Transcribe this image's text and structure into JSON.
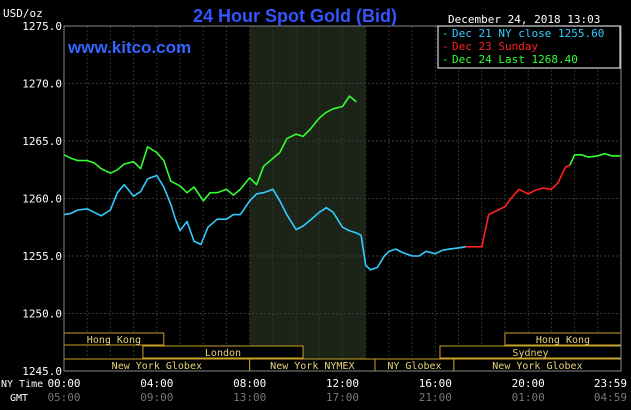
{
  "header": {
    "unit": "USD/oz",
    "title": "24 Hour Spot Gold (Bid)",
    "timestamp": "December 24, 2018 13:03",
    "watermark": "www.kitco.com"
  },
  "legend": [
    {
      "marker": "-",
      "text": "Dec 21 NY close 1255.60",
      "color": "#33ccff"
    },
    {
      "marker": "-",
      "text": "Dec 23 Sunday",
      "color": "#ff2020"
    },
    {
      "marker": "-",
      "text": "Dec 24 Last 1268.40",
      "color": "#33ff33"
    }
  ],
  "axis": {
    "y_ticks": [
      "1275.0",
      "1270.0",
      "1265.0",
      "1260.0",
      "1255.0",
      "1250.0",
      "1245.0"
    ],
    "x_labels_ny": [
      "00:00",
      "04:00",
      "08:00",
      "12:00",
      "16:00",
      "20:00",
      "23:59"
    ],
    "x_labels_gmt": [
      "05:00",
      "09:00",
      "13:00",
      "17:00",
      "21:00",
      "01:00",
      "04:59"
    ],
    "ny_time_label": "NY Time",
    "gmt_label": "GMT"
  },
  "sessions": {
    "row1": [
      {
        "label": "Hong Kong"
      },
      {
        "label": "Hong Kong"
      }
    ],
    "row2": [
      {
        "label": "London"
      },
      {
        "label": "Sydney"
      }
    ],
    "row3": [
      {
        "label": "New York Globex"
      },
      {
        "label": "New York NYMEX"
      },
      {
        "label": "NY Globex"
      },
      {
        "label": "New York Globex"
      }
    ]
  },
  "chart_data": {
    "type": "line",
    "title": "24 Hour Spot Gold (Bid)",
    "ylabel": "USD/oz",
    "ylim": [
      1245.0,
      1275.0
    ],
    "x_unit": "hours (NY Time)",
    "xlim": [
      0,
      24
    ],
    "grid": true,
    "highlight_window_hours": [
      8,
      13
    ],
    "series": [
      {
        "name": "Dec 21 NY close 1255.60",
        "color": "#33ccff",
        "x": [
          0,
          0.3,
          0.6,
          1,
          1.3,
          1.6,
          2,
          2.3,
          2.6,
          3,
          3.3,
          3.6,
          4,
          4.3,
          4.6,
          4.8,
          5,
          5.3,
          5.6,
          5.9,
          6.2,
          6.6,
          7,
          7.3,
          7.6,
          8,
          8.3,
          8.6,
          9,
          9.3,
          9.6,
          10,
          10.3,
          10.6,
          11,
          11.3,
          11.6,
          12,
          12.3,
          12.6,
          12.8,
          13,
          13.2,
          13.5,
          13.8,
          14,
          14.3,
          14.6,
          15,
          15.3,
          15.6,
          16,
          16.3,
          16.6,
          17,
          17.3
        ],
        "y": [
          1258.6,
          1258.7,
          1259,
          1259.1,
          1258.8,
          1258.5,
          1259,
          1260.5,
          1261.2,
          1260.2,
          1260.6,
          1261.7,
          1262,
          1261,
          1259.5,
          1258.2,
          1257.2,
          1258,
          1256.3,
          1256,
          1257.5,
          1258.2,
          1258.2,
          1258.6,
          1258.6,
          1259.8,
          1260.4,
          1260.5,
          1260.8,
          1259.8,
          1258.6,
          1257.3,
          1257.6,
          1258.1,
          1258.8,
          1259.2,
          1258.8,
          1257.5,
          1257.2,
          1257.0,
          1256.8,
          1254.2,
          1253.8,
          1254.0,
          1255.0,
          1255.4,
          1255.6,
          1255.3,
          1255.0,
          1255.0,
          1255.4,
          1255.2,
          1255.5,
          1255.6,
          1255.7,
          1255.8
        ]
      },
      {
        "name": "Dec 23 Sunday",
        "color": "#ff2020",
        "x": [
          17.3,
          17.6,
          18.0,
          18.3,
          18.6,
          19.0,
          19.3,
          19.6,
          20,
          20.3,
          20.6,
          21,
          21.3,
          21.6,
          21.8
        ],
        "y": [
          1255.8,
          1255.8,
          1255.8,
          1258.6,
          1258.9,
          1259.3,
          1260.1,
          1260.8,
          1260.4,
          1260.7,
          1260.9,
          1260.8,
          1261.4,
          1262.7,
          1262.9
        ]
      },
      {
        "name": "Dec 24 Last 1268.40",
        "color": "#33ff33",
        "x": [
          21.8,
          22,
          22.3,
          22.6,
          23,
          23.3,
          23.6,
          23.99,
          0,
          0.3,
          0.6,
          1,
          1.3,
          1.6,
          2,
          2.3,
          2.6,
          3,
          3.3,
          3.6,
          4,
          4.3,
          4.6,
          5,
          5.3,
          5.6,
          6,
          6.3,
          6.6,
          7,
          7.3,
          7.6,
          8,
          8.3,
          8.6,
          9,
          9.3,
          9.6,
          10,
          10.3,
          10.6,
          11,
          11.3,
          11.6,
          12,
          12.3,
          12.6
        ],
        "y": [
          1262.9,
          1263.8,
          1263.8,
          1263.6,
          1263.7,
          1263.9,
          1263.7,
          1263.7,
          1263.8,
          1263.5,
          1263.3,
          1263.3,
          1263.1,
          1262.6,
          1262.2,
          1262.5,
          1263.0,
          1263.2,
          1262.6,
          1264.5,
          1264.0,
          1263.3,
          1261.5,
          1261.1,
          1260.5,
          1261.0,
          1259.8,
          1260.5,
          1260.5,
          1260.8,
          1260.3,
          1260.8,
          1261.8,
          1261.2,
          1262.8,
          1263.5,
          1264.0,
          1265.2,
          1265.6,
          1265.4,
          1266.0,
          1267.0,
          1267.5,
          1267.8,
          1268.0,
          1268.9,
          1268.4
        ]
      }
    ]
  }
}
